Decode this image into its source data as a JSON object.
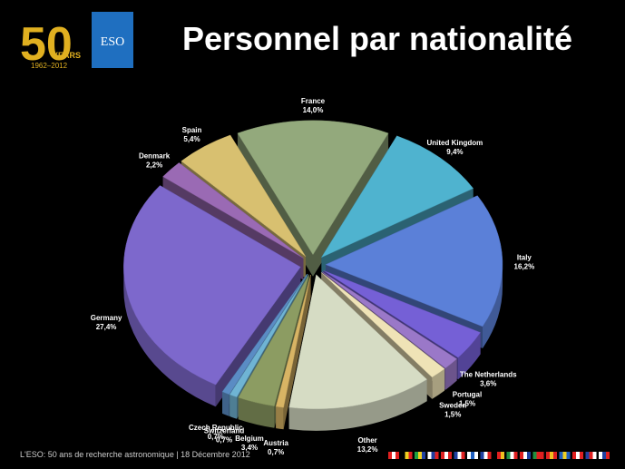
{
  "header": {
    "logo_number": "50",
    "logo_years": "YEARS",
    "logo_range": "1962–2012",
    "logo_eso": "ESO"
  },
  "footer": "L'ESO: 50 ans de recherche  astronomique | 18 Décembre 2012",
  "chart_data": {
    "type": "pie",
    "title": "Personnel par nationalité",
    "categories": [
      "France",
      "United Kingdom",
      "Italy",
      "The Netherlands",
      "Portugal",
      "Sweden",
      "Other",
      "Austria",
      "Belgium",
      "Switzerland",
      "Czech Republic",
      "Germany",
      "Denmark",
      "Spain"
    ],
    "values": [
      14.0,
      9.4,
      16.2,
      3.6,
      1.5,
      1.5,
      13.2,
      0.7,
      3.4,
      0.7,
      0.7,
      27.4,
      2.2,
      5.4
    ],
    "value_labels": [
      "14,0%",
      "9,4%",
      "16,2%",
      "3,6%",
      "1,5%",
      "1,5%",
      "13,2%",
      "0,7%",
      "3,4%",
      "0,7%",
      "0,7%",
      "27,4%",
      "2,2%",
      "5,4%"
    ],
    "colors": [
      "#93a97c",
      "#4fb3cf",
      "#5b80d8",
      "#7560d6",
      "#9a78c8",
      "#efe3b6",
      "#d6dcc4",
      "#d8b464",
      "#8c9c62",
      "#6fb4d4",
      "#5a8cc4",
      "#7d68cc",
      "#9a6ab4",
      "#d8c070"
    ]
  }
}
